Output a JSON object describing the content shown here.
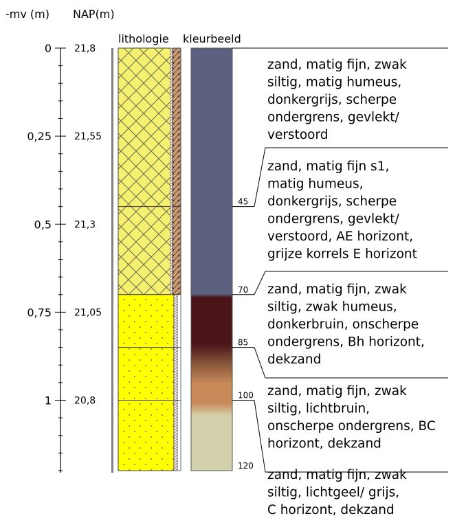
{
  "headers": {
    "depth_axis": "-mv (m)",
    "nap_axis": "NAP(m)",
    "lithology": "lithologie",
    "color_column": "kleurbeeld"
  },
  "depth_ticks": [
    {
      "depth_cm": 0,
      "mv": "0",
      "nap": "21,8"
    },
    {
      "depth_cm": 25,
      "mv": "0,25",
      "nap": "21,55"
    },
    {
      "depth_cm": 50,
      "mv": "0,5",
      "nap": "21,3"
    },
    {
      "depth_cm": 75,
      "mv": "0,75",
      "nap": "21,05"
    },
    {
      "depth_cm": 100,
      "mv": "1",
      "nap": "20,8"
    }
  ],
  "layers": [
    {
      "top_cm": 0,
      "bottom_cm": 45,
      "bottom_label": "45",
      "lithology": "sand-humic",
      "color": "#5d6180",
      "description": [
        "zand, matig fijn, zwak",
        "siltig, matig humeus,",
        "donkergrijs, scherpe",
        "ondergrens, gevlekt/",
        "verstoord"
      ]
    },
    {
      "top_cm": 45,
      "bottom_cm": 70,
      "bottom_label": "70",
      "lithology": "sand-humic",
      "color": "#5d6180",
      "description": [
        "zand, matig fijn s1,",
        "matig humeus,",
        "donkergrijs, scherpe",
        "ondergrens, gevlekt/",
        "verstoord, AE horizont,",
        "grijze korrels E horizont"
      ]
    },
    {
      "top_cm": 70,
      "bottom_cm": 85,
      "bottom_label": "85",
      "lithology": "sand",
      "color": "#4a1418",
      "description": [
        "zand, matig fijn, zwak",
        "siltig, zwak humeus,",
        "donkerbruin, onscherpe",
        "ondergrens, Bh horizont,",
        "dekzand"
      ]
    },
    {
      "top_cm": 85,
      "bottom_cm": 100,
      "bottom_label": "100",
      "lithology": "sand",
      "color": "#c98a5a",
      "description": [
        "zand, matig fijn, zwak",
        "siltig, lichtbruin,",
        "onscherpe ondergrens, BC",
        "horizont, dekzand"
      ]
    },
    {
      "top_cm": 100,
      "bottom_cm": 120,
      "bottom_label": "120",
      "lithology": "sand",
      "color": "#d3d1ab",
      "description": [
        "zand, matig fijn, zwak",
        "siltig, lichtgeel/ grijs,",
        "C horizont, dekzand"
      ]
    }
  ]
}
